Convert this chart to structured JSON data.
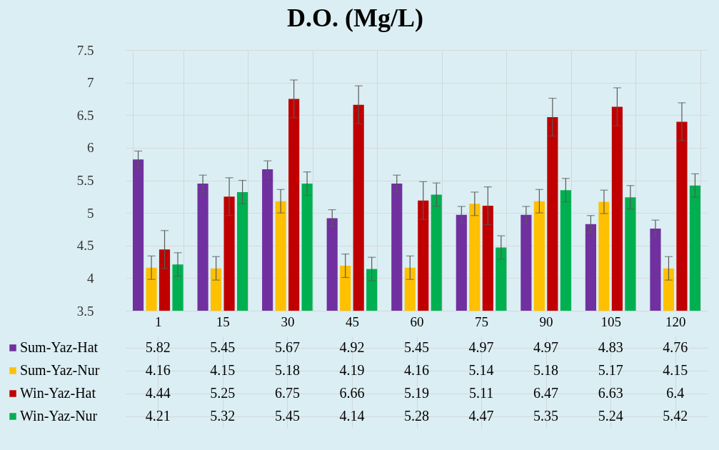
{
  "chart_data": {
    "type": "bar",
    "title": "D.O. (Mg/L)",
    "categories": [
      "1",
      "15",
      "30",
      "45",
      "60",
      "75",
      "90",
      "105",
      "120"
    ],
    "series": [
      {
        "name": "Sum-Yaz-Hat",
        "color": "#7030a0",
        "values": [
          5.82,
          5.45,
          5.67,
          4.92,
          5.45,
          4.97,
          4.97,
          4.83,
          4.76
        ],
        "errors": [
          0.13,
          0.13,
          0.13,
          0.13,
          0.13,
          0.13,
          0.13,
          0.13,
          0.13
        ]
      },
      {
        "name": "Sum-Yaz-Nur",
        "color": "#ffc000",
        "values": [
          4.16,
          4.15,
          5.18,
          4.19,
          4.16,
          5.14,
          5.18,
          5.17,
          4.15
        ],
        "errors": [
          0.18,
          0.18,
          0.18,
          0.18,
          0.18,
          0.18,
          0.18,
          0.18,
          0.18
        ]
      },
      {
        "name": "Win-Yaz-Hat",
        "color": "#c00000",
        "values": [
          4.44,
          5.25,
          6.75,
          6.66,
          5.19,
          5.11,
          6.47,
          6.63,
          6.4
        ],
        "errors": [
          0.29,
          0.29,
          0.29,
          0.29,
          0.29,
          0.29,
          0.29,
          0.29,
          0.29
        ]
      },
      {
        "name": "Win-Yaz-Nur",
        "color": "#00b050",
        "values": [
          4.21,
          5.32,
          5.45,
          4.14,
          5.28,
          4.47,
          5.35,
          5.24,
          5.42
        ],
        "errors": [
          0.18,
          0.18,
          0.18,
          0.18,
          0.18,
          0.18,
          0.18,
          0.18,
          0.18
        ]
      }
    ],
    "ylim": [
      3.5,
      7.5
    ],
    "yticks": [
      3.5,
      4,
      4.5,
      5,
      5.5,
      6,
      6.5,
      7,
      7.5
    ],
    "grid": "y",
    "legend": "bottom",
    "data_labels": true
  }
}
